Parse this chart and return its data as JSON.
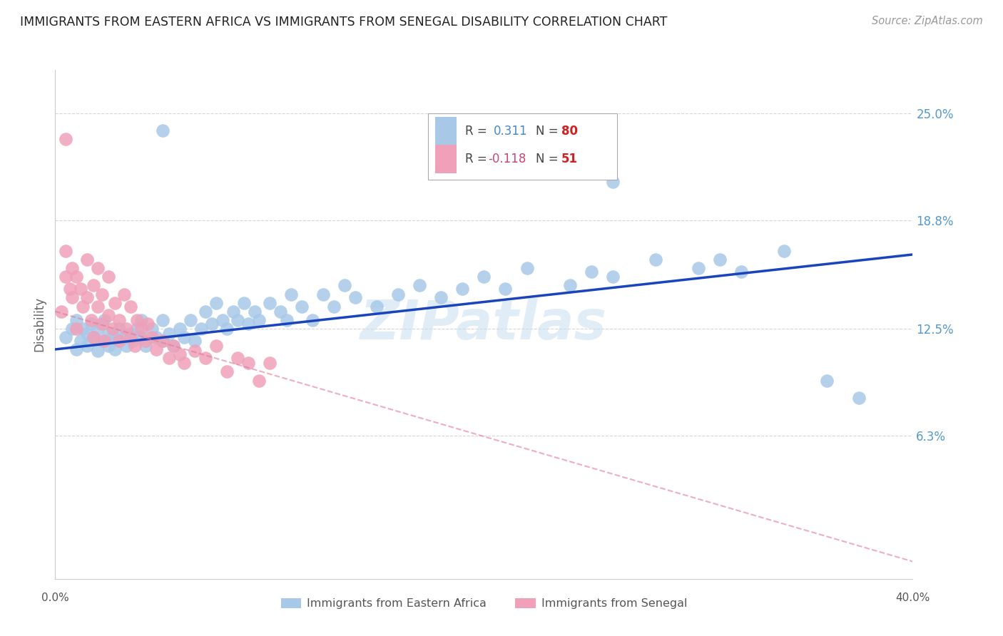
{
  "title": "IMMIGRANTS FROM EASTERN AFRICA VS IMMIGRANTS FROM SENEGAL DISABILITY CORRELATION CHART",
  "source": "Source: ZipAtlas.com",
  "ylabel": "Disability",
  "ytick_vals": [
    0.063,
    0.125,
    0.188,
    0.25
  ],
  "ytick_labels": [
    "6.3%",
    "12.5%",
    "18.8%",
    "25.0%"
  ],
  "xmin": 0.0,
  "xmax": 0.4,
  "ymin": -0.02,
  "ymax": 0.275,
  "legend1_r": "0.311",
  "legend1_n": "80",
  "legend2_r": "-0.118",
  "legend2_n": "51",
  "blue_color": "#a8c8e8",
  "pink_color": "#f0a0b8",
  "blue_line_color": "#1a44bb",
  "pink_line_color": "#e07898",
  "watermark": "ZIPatlas",
  "blue_line_x": [
    0.0,
    0.4
  ],
  "blue_line_y": [
    0.113,
    0.168
  ],
  "pink_line_x": [
    0.0,
    0.4
  ],
  "pink_line_y": [
    0.135,
    -0.01
  ],
  "ea_x": [
    0.005,
    0.008,
    0.01,
    0.01,
    0.012,
    0.013,
    0.015,
    0.015,
    0.017,
    0.018,
    0.02,
    0.02,
    0.022,
    0.023,
    0.025,
    0.025,
    0.027,
    0.028,
    0.03,
    0.03,
    0.032,
    0.033,
    0.035,
    0.036,
    0.038,
    0.04,
    0.04,
    0.042,
    0.045,
    0.047,
    0.05,
    0.05,
    0.053,
    0.055,
    0.058,
    0.06,
    0.063,
    0.065,
    0.068,
    0.07,
    0.073,
    0.075,
    0.078,
    0.08,
    0.083,
    0.085,
    0.088,
    0.09,
    0.093,
    0.095,
    0.1,
    0.105,
    0.108,
    0.11,
    0.115,
    0.12,
    0.125,
    0.13,
    0.135,
    0.14,
    0.15,
    0.16,
    0.17,
    0.18,
    0.19,
    0.2,
    0.21,
    0.22,
    0.24,
    0.25,
    0.26,
    0.28,
    0.3,
    0.31,
    0.32,
    0.34,
    0.36,
    0.375,
    0.05,
    0.26
  ],
  "ea_y": [
    0.12,
    0.125,
    0.113,
    0.13,
    0.118,
    0.125,
    0.122,
    0.115,
    0.128,
    0.12,
    0.112,
    0.125,
    0.118,
    0.13,
    0.115,
    0.122,
    0.12,
    0.113,
    0.125,
    0.118,
    0.12,
    0.115,
    0.122,
    0.118,
    0.125,
    0.12,
    0.13,
    0.115,
    0.125,
    0.12,
    0.118,
    0.13,
    0.122,
    0.115,
    0.125,
    0.12,
    0.13,
    0.118,
    0.125,
    0.135,
    0.128,
    0.14,
    0.13,
    0.125,
    0.135,
    0.13,
    0.14,
    0.128,
    0.135,
    0.13,
    0.14,
    0.135,
    0.13,
    0.145,
    0.138,
    0.13,
    0.145,
    0.138,
    0.15,
    0.143,
    0.138,
    0.145,
    0.15,
    0.143,
    0.148,
    0.155,
    0.148,
    0.16,
    0.15,
    0.158,
    0.155,
    0.165,
    0.16,
    0.165,
    0.158,
    0.17,
    0.095,
    0.085,
    0.24,
    0.21
  ],
  "sn_x": [
    0.003,
    0.005,
    0.005,
    0.007,
    0.008,
    0.008,
    0.01,
    0.01,
    0.012,
    0.013,
    0.015,
    0.015,
    0.017,
    0.018,
    0.018,
    0.02,
    0.02,
    0.022,
    0.022,
    0.023,
    0.025,
    0.025,
    0.027,
    0.028,
    0.03,
    0.03,
    0.032,
    0.033,
    0.035,
    0.035,
    0.037,
    0.038,
    0.04,
    0.042,
    0.043,
    0.045,
    0.047,
    0.05,
    0.053,
    0.055,
    0.058,
    0.06,
    0.065,
    0.07,
    0.075,
    0.08,
    0.085,
    0.09,
    0.095,
    0.1,
    0.005
  ],
  "sn_y": [
    0.135,
    0.155,
    0.17,
    0.148,
    0.16,
    0.143,
    0.155,
    0.125,
    0.148,
    0.138,
    0.143,
    0.165,
    0.13,
    0.15,
    0.12,
    0.138,
    0.16,
    0.128,
    0.145,
    0.118,
    0.133,
    0.155,
    0.125,
    0.14,
    0.13,
    0.118,
    0.145,
    0.125,
    0.12,
    0.138,
    0.115,
    0.13,
    0.125,
    0.118,
    0.128,
    0.12,
    0.113,
    0.118,
    0.108,
    0.115,
    0.11,
    0.105,
    0.112,
    0.108,
    0.115,
    0.1,
    0.108,
    0.105,
    0.095,
    0.105,
    0.235
  ]
}
